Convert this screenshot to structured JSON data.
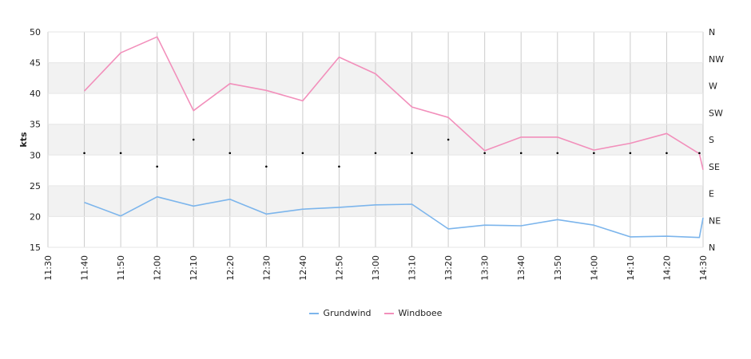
{
  "chart_data": {
    "type": "line",
    "ylabel": "kts",
    "ylim": [
      15,
      50
    ],
    "y_ticks": [
      "15",
      "20",
      "25",
      "30",
      "35",
      "40",
      "45",
      "50"
    ],
    "x_ticks": [
      "11:30",
      "11:40",
      "11:50",
      "12:00",
      "12:10",
      "12:20",
      "12:30",
      "12:40",
      "12:50",
      "13:00",
      "13:10",
      "13:20",
      "13:30",
      "13:40",
      "13:50",
      "14:00",
      "14:10",
      "14:20",
      "14:30"
    ],
    "direction_axis": {
      "labels": [
        "N",
        "NE",
        "E",
        "SE",
        "S",
        "SW",
        "W",
        "NW",
        "N"
      ],
      "range_degrees": [
        0,
        360
      ]
    },
    "alternating_bands": true,
    "series": [
      {
        "name": "Grundwind",
        "color": "#7cb5ec",
        "x": [
          "11:40",
          "11:50",
          "12:00",
          "12:10",
          "12:20",
          "12:30",
          "12:40",
          "12:50",
          "13:00",
          "13:10",
          "13:20",
          "13:30",
          "13:40",
          "13:50",
          "14:00",
          "14:10",
          "14:20",
          "14:29",
          "14:30"
        ],
        "values": [
          22.3,
          20.1,
          23.2,
          21.7,
          22.8,
          20.4,
          21.2,
          21.5,
          21.9,
          22.0,
          18.0,
          18.6,
          18.5,
          19.5,
          18.6,
          16.7,
          16.8,
          16.6,
          19.8
        ]
      },
      {
        "name": "Windboee",
        "color": "#f28fbb",
        "x": [
          "11:40",
          "11:50",
          "12:00",
          "12:10",
          "12:20",
          "12:30",
          "12:40",
          "12:50",
          "13:00",
          "13:10",
          "13:20",
          "13:30",
          "13:40",
          "13:50",
          "14:00",
          "14:10",
          "14:20",
          "14:29",
          "14:30"
        ],
        "values": [
          40.4,
          46.6,
          49.2,
          37.2,
          41.6,
          40.5,
          38.8,
          45.9,
          43.2,
          37.8,
          36.1,
          30.7,
          32.9,
          32.9,
          30.8,
          31.9,
          33.5,
          30.2,
          27.6
        ]
      }
    ],
    "direction_series": {
      "x": [
        "11:40",
        "11:50",
        "12:00",
        "12:10",
        "12:20",
        "12:30",
        "12:40",
        "12:50",
        "13:00",
        "13:10",
        "13:20",
        "13:30",
        "13:40",
        "13:50",
        "14:00",
        "14:10",
        "14:20",
        "14:29"
      ],
      "degrees": [
        157.5,
        157.5,
        135,
        180,
        157.5,
        135,
        157.5,
        135,
        157.5,
        157.5,
        180,
        157.5,
        157.5,
        157.5,
        157.5,
        157.5,
        157.5,
        157.5
      ]
    }
  }
}
